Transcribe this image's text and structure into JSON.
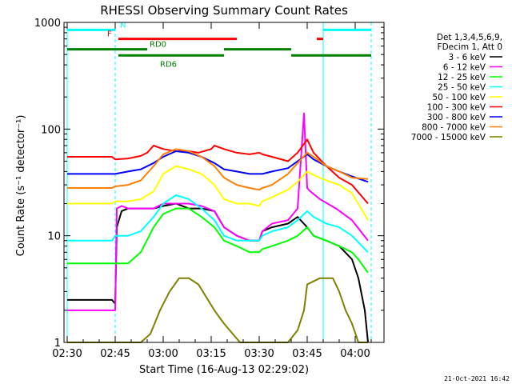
{
  "chart_data": {
    "type": "line",
    "title": "RHESSI Observing Summary Count Rates",
    "xlabel": "Start Time (16-Aug-13 02:29:02)",
    "ylabel": "Count Rate (s⁻¹ detector⁻¹)",
    "x_range_minutes": [
      0,
      100
    ],
    "xticks": [
      {
        "label": "02:30",
        "min": 1
      },
      {
        "label": "02:45",
        "min": 16
      },
      {
        "label": "03:00",
        "min": 31
      },
      {
        "label": "03:15",
        "min": 46
      },
      {
        "label": "03:30",
        "min": 61
      },
      {
        "label": "03:45",
        "min": 76
      },
      {
        "label": "04:00",
        "min": 91
      }
    ],
    "y_scale": "log",
    "ylim": [
      1,
      1000
    ],
    "yticks": [
      "1",
      "10",
      "100",
      "1000"
    ],
    "legend": {
      "header": [
        "Det 1,3,4,5,6,9,",
        "FDecim 1, Att 0"
      ],
      "placement": "right"
    },
    "series": [
      {
        "name": "3 - 6 keV",
        "color": "#000000",
        "x": [
          1,
          15,
          16,
          16.5,
          18,
          20,
          24,
          28,
          31,
          35,
          39,
          43,
          47,
          50,
          54,
          58,
          61,
          62,
          65,
          70,
          73,
          76,
          78,
          82,
          86,
          90,
          92,
          94,
          95
        ],
        "y": [
          2.5,
          2.5,
          2.3,
          12,
          17,
          18,
          18,
          18,
          19,
          20,
          18,
          18,
          17,
          12,
          10,
          9,
          9,
          11,
          12,
          13,
          15,
          12,
          10,
          9,
          8,
          6,
          4,
          2,
          1
        ]
      },
      {
        "name": "6 - 12 keV",
        "color": "#ff00ff",
        "x": [
          1,
          15,
          16,
          16.5,
          18,
          20,
          24,
          28,
          31,
          35,
          39,
          43,
          47,
          50,
          54,
          58,
          61,
          62,
          65,
          70,
          73,
          75,
          76,
          77,
          80,
          85,
          90,
          95
        ],
        "y": [
          2,
          2,
          2,
          18,
          19,
          18,
          18,
          18,
          20,
          20,
          20,
          19,
          17,
          12,
          10,
          9,
          9,
          11,
          13,
          14,
          18,
          140,
          28,
          26,
          22,
          18,
          14,
          9
        ]
      },
      {
        "name": "12 - 25 keV",
        "color": "#00ff00",
        "x": [
          1,
          15,
          16,
          16.5,
          20,
          24,
          28,
          31,
          35,
          39,
          43,
          47,
          50,
          54,
          58,
          61,
          62,
          65,
          70,
          73,
          76,
          78,
          82,
          86,
          90,
          92,
          95
        ],
        "y": [
          5.5,
          5.5,
          5.5,
          5.5,
          5.5,
          7,
          12,
          16,
          18,
          18,
          15,
          12,
          9,
          8,
          7,
          7,
          7.5,
          8,
          9,
          10,
          12,
          10,
          9,
          8,
          7,
          6,
          4.5
        ]
      },
      {
        "name": "25 - 50 keV",
        "color": "#00ffff",
        "x": [
          1,
          15,
          16,
          20,
          24,
          28,
          31,
          35,
          39,
          43,
          47,
          50,
          54,
          58,
          61,
          62,
          65,
          70,
          73,
          76,
          78,
          82,
          86,
          90,
          95
        ],
        "y": [
          9,
          9,
          10,
          10,
          11,
          15,
          20,
          24,
          22,
          18,
          14,
          10,
          9,
          9,
          9,
          10,
          11,
          12,
          14,
          17,
          15,
          13,
          12,
          10,
          7
        ]
      },
      {
        "name": "50 - 100 keV",
        "color": "#ffff00",
        "x": [
          1,
          15,
          16,
          20,
          24,
          28,
          31,
          35,
          39,
          43,
          47,
          50,
          54,
          58,
          61,
          62,
          65,
          70,
          73,
          76,
          78,
          82,
          86,
          90,
          95
        ],
        "y": [
          20,
          20,
          21,
          21,
          22,
          26,
          38,
          45,
          42,
          38,
          30,
          22,
          20,
          20,
          19,
          21,
          23,
          27,
          32,
          40,
          37,
          33,
          30,
          25,
          14
        ]
      },
      {
        "name": "100 - 300 keV",
        "color": "#ff0000",
        "x": [
          1,
          15,
          16,
          20,
          24,
          26,
          28,
          31,
          35,
          39,
          42,
          46,
          47,
          50,
          54,
          58,
          61,
          62,
          65,
          70,
          73,
          76,
          78,
          82,
          86,
          90,
          95
        ],
        "y": [
          55,
          55,
          52,
          53,
          56,
          60,
          70,
          65,
          62,
          62,
          60,
          65,
          70,
          65,
          60,
          58,
          60,
          58,
          55,
          50,
          60,
          80,
          60,
          45,
          35,
          30,
          20
        ]
      },
      {
        "name": "300 - 800 keV",
        "color": "#0000ff",
        "x": [
          1,
          15,
          16,
          20,
          24,
          28,
          31,
          35,
          39,
          43,
          47,
          50,
          54,
          58,
          61,
          62,
          65,
          70,
          73,
          76,
          78,
          82,
          86,
          90,
          95
        ],
        "y": [
          38,
          38,
          38,
          40,
          42,
          48,
          55,
          62,
          60,
          55,
          48,
          42,
          40,
          38,
          38,
          38,
          40,
          43,
          50,
          58,
          52,
          45,
          40,
          36,
          32
        ]
      },
      {
        "name": "800 - 7000 keV",
        "color": "#ff8000",
        "x": [
          1,
          15,
          16,
          20,
          24,
          28,
          31,
          35,
          39,
          43,
          47,
          50,
          54,
          58,
          61,
          62,
          65,
          70,
          73,
          76,
          78,
          82,
          86,
          90,
          95
        ],
        "y": [
          28,
          28,
          29,
          30,
          33,
          45,
          58,
          65,
          62,
          55,
          45,
          35,
          30,
          28,
          27,
          28,
          30,
          38,
          48,
          60,
          55,
          45,
          40,
          35,
          34
        ]
      },
      {
        "name": "7000 - 15000 keV",
        "color": "#808000",
        "x": [
          1,
          15,
          16,
          20,
          24,
          27,
          30,
          33,
          36,
          39,
          42,
          45,
          47,
          50,
          55,
          60,
          61,
          65,
          70,
          73,
          75,
          76,
          80,
          84,
          86,
          88,
          90,
          92,
          95
        ],
        "y": [
          1,
          1,
          1,
          1,
          1,
          1.2,
          2,
          3,
          4,
          4,
          3.5,
          2.5,
          2,
          1.5,
          1,
          1,
          1,
          1,
          1,
          1.3,
          2,
          3.5,
          4,
          4,
          3,
          2,
          1.5,
          1,
          1
        ]
      }
    ],
    "annotations": [
      {
        "label": "N",
        "color": "#00ffff",
        "segments": [
          [
            1,
            16
          ],
          [
            81,
            96
          ]
        ],
        "y": 850
      },
      {
        "label": "F",
        "color": "#ff0000",
        "segments": [
          [
            17,
            54
          ],
          [
            79,
            81
          ]
        ],
        "y": 700
      },
      {
        "label": "RD0",
        "color": "#008000",
        "segments": [
          [
            1,
            26
          ],
          [
            50,
            71
          ]
        ],
        "y": 560
      },
      {
        "label": "RD6",
        "color": "#008000",
        "segments": [
          [
            17,
            50
          ],
          [
            71,
            96
          ]
        ],
        "y": 490
      }
    ],
    "vlines": [
      {
        "min": 1,
        "color": "#00ffff",
        "style": "solid"
      },
      {
        "min": 16,
        "color": "#00ffff",
        "style": "dashed"
      },
      {
        "min": 81,
        "color": "#00ffff",
        "style": "solid"
      },
      {
        "min": 96,
        "color": "#00ffff",
        "style": "dashed"
      }
    ]
  },
  "timestamp": "21-Oct-2021 16:42"
}
